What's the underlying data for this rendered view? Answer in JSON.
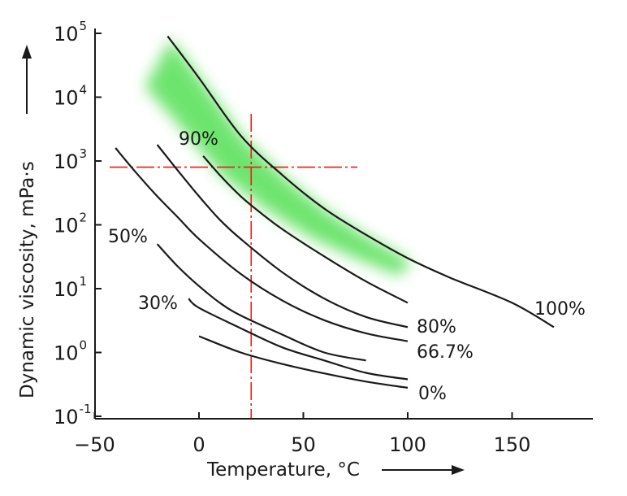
{
  "chart_data": {
    "type": "line",
    "xlabel": "Temperature, °C",
    "ylabel": "Dynamic viscosity, mPa·s",
    "x_ticks": [
      -50,
      0,
      50,
      100,
      150
    ],
    "y_ticks": [
      {
        "base": "10",
        "exp": "-1",
        "value": 0.1
      },
      {
        "base": "10",
        "exp": "0",
        "value": 1
      },
      {
        "base": "10",
        "exp": "1",
        "value": 10
      },
      {
        "base": "10",
        "exp": "2",
        "value": 100
      },
      {
        "base": "10",
        "exp": "3",
        "value": 1000
      },
      {
        "base": "10",
        "exp": "4",
        "value": 10000
      },
      {
        "base": "10",
        "exp": "5",
        "value": 100000
      }
    ],
    "xlim": [
      -50,
      185
    ],
    "ylim": [
      0.1,
      150000
    ],
    "y_scale": "log",
    "series": [
      {
        "name": "100%",
        "x": [
          -15,
          0,
          20,
          40,
          60,
          80,
          100,
          120,
          150,
          170
        ],
        "y": [
          90000,
          20000,
          2500,
          600,
          180,
          70,
          30,
          15,
          6,
          2.5
        ]
      },
      {
        "name": "90%",
        "x": [
          2,
          10,
          20,
          30,
          40,
          60,
          80,
          100
        ],
        "y": [
          1200,
          600,
          280,
          150,
          85,
          32,
          13,
          6
        ]
      },
      {
        "name": "80%",
        "x": [
          -20,
          -10,
          0,
          10,
          20,
          40,
          60,
          80,
          100
        ],
        "y": [
          1800,
          700,
          280,
          120,
          60,
          18,
          7,
          3.6,
          2.5
        ]
      },
      {
        "name": "66.7%",
        "x": [
          -40,
          -30,
          -20,
          -10,
          0,
          20,
          40,
          60,
          80,
          100
        ],
        "y": [
          1600,
          650,
          280,
          130,
          60,
          17,
          6.5,
          3.2,
          2,
          1.5
        ]
      },
      {
        "name": "50%",
        "x": [
          -20,
          -10,
          0,
          10,
          20,
          40,
          60,
          80
        ],
        "y": [
          50,
          22,
          11,
          6,
          3.8,
          1.9,
          1,
          0.75
        ]
      },
      {
        "name": "30%",
        "x": [
          -5,
          0,
          20,
          40,
          60,
          80,
          100
        ],
        "y": [
          7,
          5,
          2.4,
          1.2,
          0.75,
          0.48,
          0.38
        ]
      },
      {
        "name": "0%",
        "x": [
          0,
          20,
          40,
          60,
          80,
          100
        ],
        "y": [
          1.8,
          1,
          0.66,
          0.47,
          0.35,
          0.28
        ]
      }
    ],
    "shaded_band": {
      "color": "#3cdc3c",
      "x": [
        -15,
        100
      ],
      "around_series": "100%"
    },
    "reference_lines": {
      "x": 25,
      "y": 800,
      "color": "#e02020"
    },
    "grid": false,
    "legend": "none"
  }
}
